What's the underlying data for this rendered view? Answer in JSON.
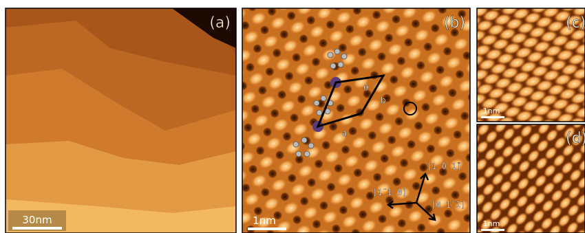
{
  "panels": [
    {
      "label": "(a)",
      "scale_bar": "30nm"
    },
    {
      "label": "(b)",
      "scale_bar": "1nm",
      "angle": "θ",
      "vector_a": "a",
      "vector_b": "b",
      "directions": [
        "[1 0 1̄]",
        "[1̄ 1 0]",
        "[0 1̄ 1]"
      ]
    },
    {
      "label": "(c)",
      "scale_bar": "1nm"
    },
    {
      "label": "(d)",
      "scale_bar": "1nm"
    }
  ]
}
